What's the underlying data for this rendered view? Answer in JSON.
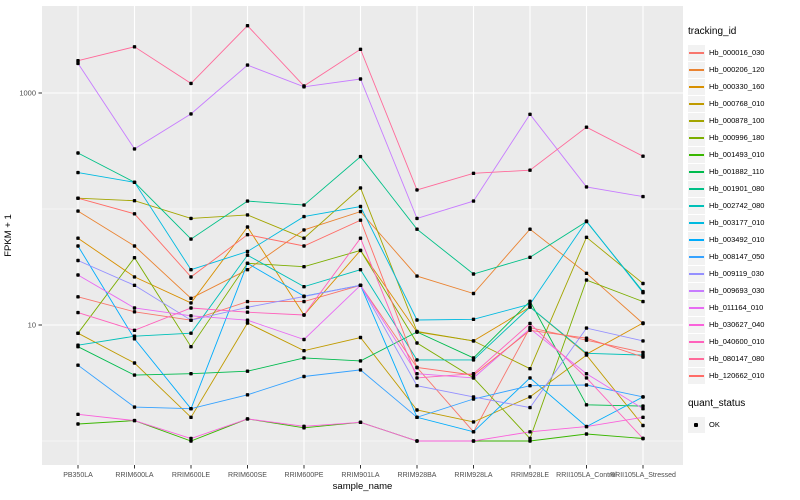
{
  "chart_data": {
    "type": "line",
    "title": "",
    "xlabel": "sample_name",
    "ylabel": "FPKM + 1",
    "y_scale": "log10",
    "y_major_ticks": [
      10,
      1000
    ],
    "y_minor_gridlines": [
      1,
      100
    ],
    "ylim": [
      0.6,
      5600
    ],
    "grid": "on",
    "legend": {
      "position": "right",
      "color_title": "tracking_id",
      "shape_title": "quant_status",
      "shape_items": [
        "OK"
      ]
    },
    "categories": [
      "PB350LA",
      "RRIM600LA",
      "RRIM600LE",
      "RRIM600SE",
      "RRIM600PE",
      "RRIM901LA",
      "RRIM928BA",
      "RRIM928LA",
      "RRIM928LE",
      "RRII105LA_Control",
      "RRII105LA_Stressed"
    ],
    "series": [
      {
        "name": "Hb_000016_030",
        "color": "#F8766D",
        "values": [
          17.5,
          13,
          11,
          15.9,
          15.9,
          22,
          4.3,
          1.2,
          9.5,
          7.4,
          5.8
        ]
      },
      {
        "name": "Hb_000206_120",
        "color": "#EA8331",
        "values": [
          96,
          48,
          17,
          30,
          66,
          95,
          26.4,
          18.7,
          67,
          27.9,
          10.3
        ]
      },
      {
        "name": "Hb_000330_160",
        "color": "#D89000",
        "values": [
          56,
          26,
          15.5,
          70,
          12.2,
          44,
          8.7,
          7.3,
          14.3,
          5.6,
          10.4
        ]
      },
      {
        "name": "Hb_000768_010",
        "color": "#C09B00",
        "values": [
          8.5,
          4.7,
          1.6,
          10.4,
          6.0,
          7.8,
          1.85,
          1.46,
          2.4,
          5.5,
          1.36
        ]
      },
      {
        "name": "Hb_000878_100",
        "color": "#A3A500",
        "values": [
          124,
          118,
          83,
          89,
          56,
          152,
          8.8,
          7.3,
          4.2,
          57,
          22.8
        ]
      },
      {
        "name": "Hb_000996_180",
        "color": "#7CAE00",
        "values": [
          8.5,
          38,
          6.5,
          34,
          31.8,
          44,
          7.0,
          3.5,
          1.05,
          24.4,
          15.9
        ]
      },
      {
        "name": "Hb_001493_010",
        "color": "#39B600",
        "values": [
          1.4,
          1.5,
          1.0,
          1.55,
          1.3,
          1.45,
          1.0,
          1.0,
          1.0,
          1.15,
          1.05
        ]
      },
      {
        "name": "Hb_001882_110",
        "color": "#00BB4E",
        "values": [
          6.5,
          3.7,
          3.8,
          4.0,
          5.2,
          4.9,
          8.7,
          5.2,
          16,
          2.05,
          2.0
        ]
      },
      {
        "name": "Hb_001901_080",
        "color": "#00C087",
        "values": [
          304,
          170,
          55,
          117,
          108,
          283,
          67,
          27.5,
          38.3,
          77.8,
          19.4
        ]
      },
      {
        "name": "Hb_002742_080",
        "color": "#00C0B8",
        "values": [
          6.7,
          8,
          8.5,
          40,
          21.4,
          30,
          5.0,
          5.0,
          14.3,
          5.7,
          5.5
        ]
      },
      {
        "name": "Hb_003177_010",
        "color": "#00BAE0",
        "values": [
          206,
          170,
          30,
          43,
          86,
          105,
          11.05,
          11.2,
          15.1,
          78.6,
          19
        ]
      },
      {
        "name": "Hb_003492_010",
        "color": "#00ACFC",
        "values": [
          48,
          7.6,
          1.9,
          34,
          17.7,
          22,
          1.6,
          1.2,
          3.5,
          1.33,
          2.4
        ]
      },
      {
        "name": "Hb_008147_050",
        "color": "#35A2FF",
        "values": [
          4.5,
          1.96,
          1.9,
          2.5,
          3.6,
          4.1,
          1.6,
          2.3,
          3.0,
          3.04,
          2.4
        ]
      },
      {
        "name": "Hb_009119_030",
        "color": "#9590FF",
        "values": [
          36,
          22,
          11,
          14.2,
          17.6,
          22,
          3.0,
          2.4,
          1.94,
          9.4,
          7.3
        ]
      },
      {
        "name": "Hb_009693_030",
        "color": "#C77CFF",
        "values": [
          1800,
          330,
          660,
          1740,
          1130,
          1320,
          83,
          117,
          655,
          155,
          128
        ]
      },
      {
        "name": "Hb_011164_010",
        "color": "#E76BF3",
        "values": [
          27,
          14,
          12,
          11,
          7.5,
          22,
          3.8,
          3.5,
          9.3,
          3.8,
          1.9
        ]
      },
      {
        "name": "Hb_030627_040",
        "color": "#FA62DB",
        "values": [
          1.7,
          1.5,
          1.05,
          1.55,
          1.34,
          1.45,
          1.0,
          1.0,
          1.2,
          1.33,
          1.6
        ]
      },
      {
        "name": "Hb_040600_010",
        "color": "#FF62BC",
        "values": [
          12.8,
          9.0,
          14,
          12.9,
          12.2,
          56,
          3.5,
          3.8,
          10.3,
          3.5,
          1.05
        ]
      },
      {
        "name": "Hb_080147_080",
        "color": "#FF6A9A",
        "values": [
          1900,
          2500,
          1210,
          3800,
          1150,
          2380,
          146,
          203,
          216,
          507,
          285
        ]
      },
      {
        "name": "Hb_120662_010",
        "color": "#FF6C67",
        "values": [
          124,
          91,
          26,
          60,
          48,
          80,
          4.3,
          3.7,
          9.0,
          7.7,
          5.3
        ]
      }
    ],
    "marker": {
      "shape": "square",
      "color": "#000000",
      "label": "OK"
    },
    "style": {
      "panel_bg": "#EBEBEB",
      "grid_color": "#FFFFFF",
      "axis_text_color": "#4D4D4D",
      "axis_title_color": "#000000",
      "legend_key_bg": "#F2F2F2",
      "tick_color": "#333333"
    }
  }
}
